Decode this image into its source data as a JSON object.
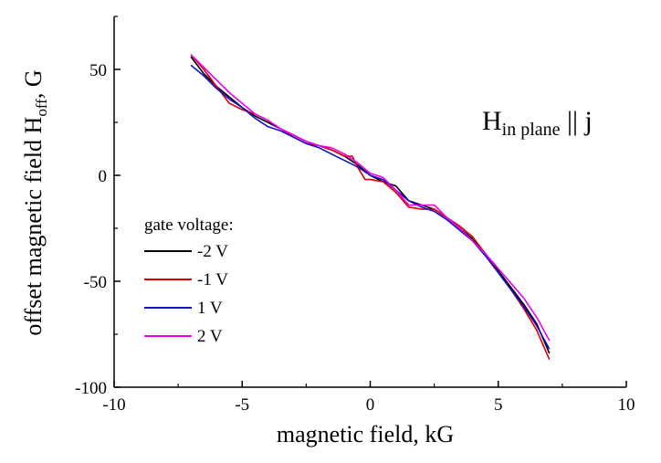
{
  "chart_data": {
    "type": "line",
    "xlabel": "magnetic field, kG",
    "ylabel_main": "offset magnetic field H",
    "ylabel_sub": "off",
    "ylabel_tail": ", G",
    "xlim": [
      -10,
      10
    ],
    "ylim": [
      -100,
      75
    ],
    "xticks": [
      -10,
      -5,
      0,
      5,
      10
    ],
    "yticks": [
      -100,
      -50,
      0,
      50
    ],
    "annotation": {
      "main": "H",
      "sub": "in plane",
      "tail": " || j"
    },
    "legend_title": "gate voltage:",
    "series": [
      {
        "name": "-2 V",
        "color": "#000000",
        "x": [
          -7,
          -6.5,
          -6,
          -5.5,
          -5,
          -4.5,
          -4,
          -3.5,
          -3,
          -2.5,
          -2,
          -1.5,
          -1,
          -0.5,
          0,
          0.5,
          1,
          1.5,
          2,
          2.5,
          3,
          3.5,
          4,
          4.5,
          5,
          5.5,
          6,
          6.5,
          7
        ],
        "y": [
          56,
          48,
          42,
          37,
          32,
          28,
          25,
          22,
          19,
          16,
          14,
          12,
          9,
          5,
          0,
          -3,
          -5,
          -12,
          -14,
          -16,
          -20,
          -25,
          -30,
          -37,
          -45,
          -53,
          -61,
          -70,
          -84
        ]
      },
      {
        "name": "-1 V",
        "color": "#dd0000",
        "x": [
          -7,
          -6.5,
          -6,
          -5.5,
          -5,
          -4.5,
          -4,
          -3.5,
          -3,
          -2.5,
          -2,
          -1.5,
          -1,
          -0.7,
          -0.5,
          -0.2,
          0,
          0.5,
          1,
          1.5,
          2,
          2.5,
          3,
          3.5,
          4,
          4.5,
          5,
          5.5,
          6,
          6.5,
          7
        ],
        "y": [
          57,
          50,
          42,
          34,
          31,
          29,
          26,
          22,
          18,
          15,
          14,
          12,
          9,
          9,
          4,
          -2,
          -2,
          -3,
          -8,
          -15,
          -16,
          -16,
          -20,
          -24,
          -29,
          -37,
          -46,
          -54,
          -63,
          -73,
          -87
        ]
      },
      {
        "name": "1 V",
        "color": "#1010cc",
        "x": [
          -7,
          -6.5,
          -6,
          -5.5,
          -5,
          -4.5,
          -4,
          -3.5,
          -3,
          -2.5,
          -2,
          -1.5,
          -1,
          -0.5,
          0,
          0.5,
          1,
          1.5,
          2,
          2.5,
          3,
          3.5,
          4,
          4.5,
          5,
          5.5,
          6,
          6.5,
          7
        ],
        "y": [
          52,
          47,
          41,
          36,
          32,
          27,
          23,
          21,
          18,
          15,
          13,
          10,
          7,
          4,
          0,
          -2,
          -7,
          -12,
          -15,
          -17,
          -21,
          -26,
          -31,
          -38,
          -46,
          -54,
          -62,
          -71,
          -82
        ]
      },
      {
        "name": "2 V",
        "color": "#ee00ee",
        "x": [
          -7,
          -6.5,
          -6,
          -5.5,
          -5,
          -4.5,
          -4,
          -3.5,
          -3,
          -2.5,
          -2,
          -1.5,
          -1,
          -0.5,
          0,
          0.5,
          1,
          1.5,
          2,
          2.5,
          3,
          3.5,
          4,
          4.5,
          5,
          5.5,
          6,
          6.5,
          7
        ],
        "y": [
          57,
          51,
          45,
          39,
          34,
          29,
          26,
          22,
          19,
          16,
          14,
          13,
          10,
          6,
          1,
          -1,
          -7,
          -14,
          -14,
          -14,
          -20,
          -25,
          -31,
          -37,
          -44,
          -51,
          -58,
          -67,
          -78
        ]
      }
    ]
  }
}
